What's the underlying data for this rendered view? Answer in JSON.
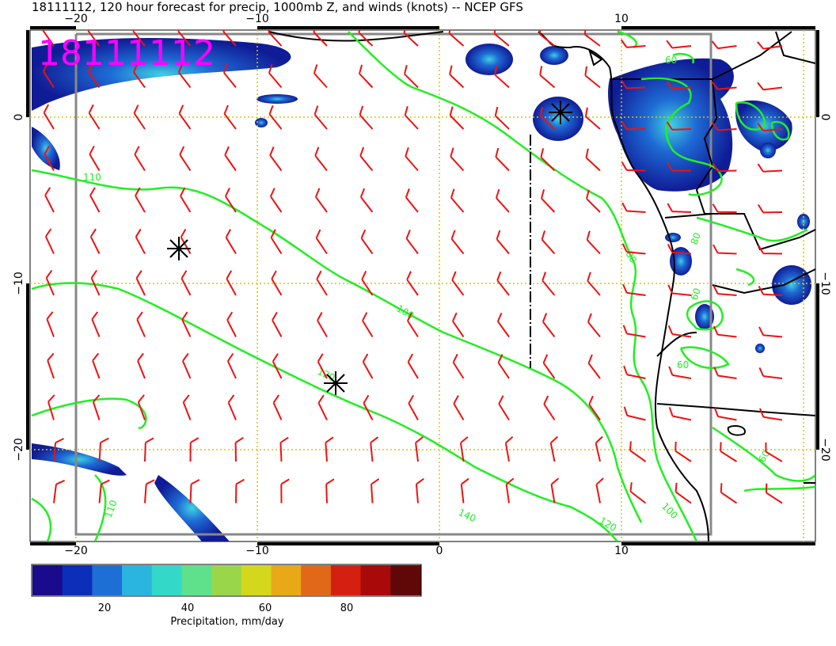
{
  "title": "18111112, 120 hour forecast for precip, 1000mb Z, and winds (knots) -- NCEP GFS",
  "date_stamp": "18111112",
  "axes": {
    "x_ticks": [
      "−20",
      "−10",
      "0",
      "10"
    ],
    "y_ticks": [
      "0",
      "−10",
      "−20"
    ]
  },
  "contour_labels": [
    "110",
    "100",
    "120",
    "120",
    "140",
    "110",
    "80",
    "80",
    "60",
    "60",
    "60",
    "60",
    "100"
  ],
  "colorbar": {
    "label": "Precipitation, mm/day",
    "ticks": [
      "20",
      "40",
      "60",
      "80"
    ],
    "colors": [
      "#1a0a8c",
      "#0b2fb8",
      "#1d6fd6",
      "#2ab4e0",
      "#33d8c8",
      "#5fe08a",
      "#9ad64a",
      "#d4d81c",
      "#e8a818",
      "#e06818",
      "#d42010",
      "#a80a0a",
      "#600808"
    ]
  },
  "colors": {
    "contour": "#22ee22",
    "barb": "#ee1111",
    "coast": "#000000",
    "grid": "#d4c800",
    "box": "#888888"
  }
}
